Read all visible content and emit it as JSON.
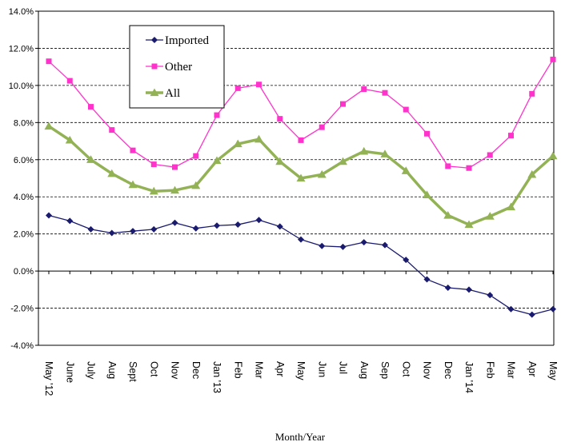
{
  "chart_data": {
    "type": "line",
    "title": "",
    "xlabel": "Month/Year",
    "ylabel": "",
    "ylim": [
      -4,
      14
    ],
    "y_ticks": [
      14,
      12,
      10,
      8,
      6,
      4,
      2,
      0,
      -2,
      -4
    ],
    "y_tick_labels": [
      "14.0%",
      "12.0%",
      "10.0%",
      "8.0%",
      "6.0%",
      "4.0%",
      "2.0%",
      "0.0%",
      "-2.0%",
      "-4.0%"
    ],
    "categories": [
      "May '12",
      "June",
      "July",
      "Aug",
      "Sept",
      "Oct",
      "Nov",
      "Dec",
      "Jan '13",
      "Feb",
      "Mar",
      "Apr",
      "May",
      "Jun",
      "Jul",
      "Aug",
      "Sep",
      "Oct",
      "Nov",
      "Dec",
      "Jan '14",
      "Feb",
      "Mar",
      "Apr",
      "May"
    ],
    "grid": "horizontal-dashed",
    "legend_placement": "top-left",
    "series": [
      {
        "name": "Imported",
        "color": "#1a1a6e",
        "marker": "diamond",
        "values": [
          3.0,
          2.7,
          2.25,
          2.05,
          2.15,
          2.25,
          2.6,
          2.3,
          2.45,
          2.5,
          2.75,
          2.4,
          1.7,
          1.35,
          1.3,
          1.55,
          1.4,
          0.6,
          -0.45,
          -0.9,
          -1.0,
          -1.3,
          -2.05,
          -2.35,
          -2.05
        ]
      },
      {
        "name": "Other",
        "color": "#ff33cc",
        "marker": "square",
        "values": [
          11.3,
          10.25,
          8.85,
          7.6,
          6.5,
          5.75,
          5.6,
          6.2,
          8.4,
          9.85,
          10.05,
          8.2,
          7.05,
          7.75,
          9.0,
          9.8,
          9.6,
          8.7,
          7.4,
          5.65,
          5.55,
          6.25,
          7.3,
          9.55,
          11.4
        ]
      },
      {
        "name": "All",
        "color": "#92b255",
        "marker": "triangle",
        "values": [
          7.8,
          7.05,
          6.0,
          5.25,
          4.65,
          4.3,
          4.35,
          4.6,
          5.95,
          6.85,
          7.1,
          5.9,
          5.0,
          5.2,
          5.9,
          6.45,
          6.3,
          5.4,
          4.1,
          3.0,
          2.5,
          2.95,
          3.45,
          5.2,
          6.2
        ]
      }
    ]
  }
}
